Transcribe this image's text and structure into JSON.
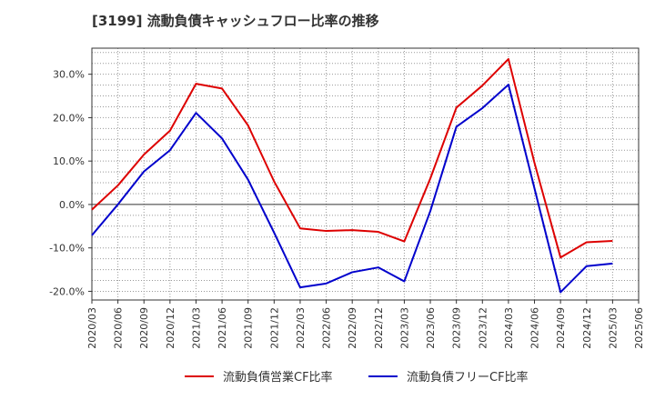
{
  "chart_data": {
    "type": "line",
    "title": "[3199]  流動負債キャッシュフロー比率の推移",
    "xlabel": "",
    "ylabel": "",
    "ylim": [
      -22,
      36
    ],
    "y_ticks": [
      30,
      20,
      10,
      0,
      -10,
      -20
    ],
    "y_tick_labels": [
      "30.0%",
      "20.0%",
      "10.0%",
      "0.0%",
      "-10.0%",
      "-20.0%"
    ],
    "x_tick_labels": [
      "2020/03",
      "2020/06",
      "2020/09",
      "2020/12",
      "2021/03",
      "2021/06",
      "2021/09",
      "2021/12",
      "2022/03",
      "2022/06",
      "2022/09",
      "2022/12",
      "2023/03",
      "2023/06",
      "2023/09",
      "2023/12",
      "2024/03",
      "2024/06",
      "2024/09",
      "2024/12",
      "2025/03",
      "2025/06"
    ],
    "grid": true,
    "legend_position": "bottom",
    "series": [
      {
        "name": "流動負債営業CF比率",
        "color": "#dd0000",
        "x": [
          "2020/03",
          "2020/06",
          "2020/09",
          "2020/12",
          "2021/03",
          "2021/06",
          "2021/09",
          "2021/12",
          "2022/03",
          "2022/06",
          "2022/09",
          "2022/12",
          "2023/03",
          "2023/06",
          "2023/09",
          "2023/12",
          "2024/03",
          "2024/06",
          "2024/09",
          "2024/12",
          "2025/03"
        ],
        "values": [
          -1.2,
          4.4,
          11.5,
          17.0,
          27.8,
          26.7,
          18.2,
          5.3,
          -5.5,
          -6.1,
          -5.9,
          -6.3,
          -8.5,
          6.0,
          22.3,
          27.4,
          33.5,
          9.6,
          -12.2,
          -8.7,
          -8.4
        ]
      },
      {
        "name": "流動負債フリーCF比率",
        "color": "#0000cc",
        "x": [
          "2020/03",
          "2020/06",
          "2020/09",
          "2020/12",
          "2021/03",
          "2021/06",
          "2021/09",
          "2021/12",
          "2022/03",
          "2022/06",
          "2022/09",
          "2022/12",
          "2023/03",
          "2023/06",
          "2023/09",
          "2023/12",
          "2024/03",
          "2024/06",
          "2024/09",
          "2024/12",
          "2025/03"
        ],
        "values": [
          -7.1,
          0.0,
          7.6,
          12.5,
          21.1,
          15.2,
          5.7,
          -6.5,
          -19.1,
          -18.2,
          -15.6,
          -14.5,
          -17.7,
          -1.5,
          17.9,
          22.2,
          27.6,
          3.7,
          -20.2,
          -14.2,
          -13.6
        ]
      }
    ]
  }
}
